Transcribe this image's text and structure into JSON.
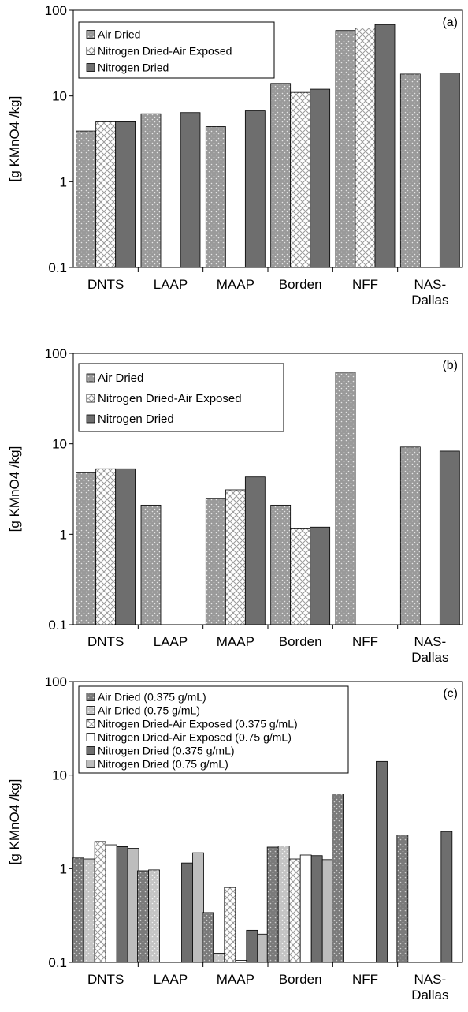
{
  "chart_data": [
    {
      "type": "bar",
      "panel_label": "(a)",
      "ylabel": "[g KMnO4 /kg]",
      "yscale": "log",
      "ylim": [
        0.1,
        100
      ],
      "yticks": [
        "0.1",
        "1",
        "10",
        "100"
      ],
      "categories": [
        "DNTS",
        "LAAP",
        "MAAP",
        "Borden",
        "NFF",
        "NAS-\nDallas"
      ],
      "series": [
        {
          "name": "Air Dried",
          "style": "dotted",
          "values": [
            3.9,
            6.2,
            4.4,
            14,
            58,
            18
          ]
        },
        {
          "name": "Nitrogen Dried-Air Exposed",
          "style": "crosshatch",
          "values": [
            5.0,
            null,
            null,
            11,
            62,
            null
          ]
        },
        {
          "name": "Nitrogen Dried",
          "style": "dark",
          "values": [
            5.0,
            6.4,
            6.7,
            12,
            68,
            18.5
          ]
        }
      ],
      "legend_position": "top-left"
    },
    {
      "type": "bar",
      "panel_label": "(b)",
      "ylabel": "[g KMnO4 /kg]",
      "yscale": "log",
      "ylim": [
        0.1,
        100
      ],
      "yticks": [
        "0.1",
        "1",
        "10",
        "100"
      ],
      "categories": [
        "DNTS",
        "LAAP",
        "MAAP",
        "Borden",
        "NFF",
        "NAS-\nDallas"
      ],
      "series": [
        {
          "name": "Air Dried",
          "style": "dotted",
          "values": [
            4.8,
            2.1,
            2.5,
            2.1,
            62,
            9.2
          ]
        },
        {
          "name": "Nitrogen Dried-Air Exposed",
          "style": "crosshatch",
          "values": [
            5.3,
            null,
            3.1,
            1.15,
            null,
            null
          ]
        },
        {
          "name": "Nitrogen Dried",
          "style": "dark",
          "values": [
            5.3,
            null,
            4.3,
            1.2,
            null,
            8.3
          ]
        }
      ],
      "legend_position": "top-left"
    },
    {
      "type": "bar",
      "panel_label": "(c)",
      "ylabel": "[g KMnO4 /kg]",
      "yscale": "log",
      "ylim": [
        0.1,
        100
      ],
      "yticks": [
        "0.1",
        "1",
        "10",
        "100"
      ],
      "categories": [
        "DNTS",
        "LAAP",
        "MAAP",
        "Borden",
        "NFF",
        "NAS-\nDallas"
      ],
      "series": [
        {
          "name": "Air Dried (0.375 g/mL)",
          "style": "dotted-dark",
          "values": [
            1.3,
            0.95,
            0.34,
            1.7,
            6.3,
            2.3
          ]
        },
        {
          "name": "Air Dried (0.75 g/mL)",
          "style": "dotted-light",
          "values": [
            1.27,
            0.97,
            0.125,
            1.75,
            null,
            null
          ]
        },
        {
          "name": "Nitrogen Dried-Air Exposed (0.375 g/mL)",
          "style": "crosshatch",
          "values": [
            1.95,
            null,
            0.63,
            1.27,
            null,
            null
          ]
        },
        {
          "name": "Nitrogen Dried-Air Exposed (0.75 g/mL)",
          "style": "white",
          "values": [
            1.8,
            null,
            0.105,
            1.4,
            null,
            null
          ]
        },
        {
          "name": "Nitrogen Dried (0.375 g/mL)",
          "style": "dark",
          "values": [
            1.72,
            1.15,
            0.22,
            1.38,
            14,
            2.5
          ]
        },
        {
          "name": "Nitrogen Dried (0.75 g/mL)",
          "style": "light",
          "values": [
            1.65,
            1.48,
            0.2,
            1.25,
            null,
            null
          ]
        }
      ],
      "legend_position": "top-left"
    }
  ]
}
